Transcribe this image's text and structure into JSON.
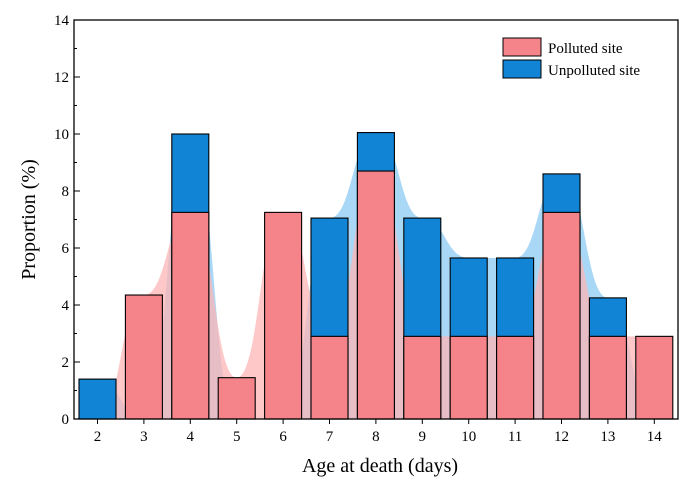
{
  "chart_data": {
    "type": "bar",
    "xlabel": "Age at death (days)",
    "ylabel": "Proportion (%)",
    "ylim": [
      0,
      14
    ],
    "yticks": [
      0,
      2,
      4,
      6,
      8,
      10,
      12,
      14
    ],
    "categories": [
      "2",
      "3",
      "4",
      "5",
      "6",
      "7",
      "8",
      "9",
      "10",
      "11",
      "12",
      "13",
      "14"
    ],
    "series": [
      {
        "name": "Polluted site",
        "color": "#f4838a",
        "values": [
          0,
          4.35,
          7.25,
          1.45,
          7.25,
          2.9,
          8.7,
          2.9,
          2.9,
          2.9,
          7.25,
          2.9,
          2.9
        ]
      },
      {
        "name": "Unpolluted site",
        "color": "#1184d6",
        "values": [
          1.4,
          0,
          10.0,
          0,
          0,
          7.05,
          10.05,
          7.05,
          5.65,
          5.65,
          8.6,
          4.25,
          0
        ]
      }
    ],
    "stacking": "overlay",
    "band_colors": {
      "Polluted site": "#fdb6b6",
      "Unpolluted site": "#8ccbf3"
    },
    "legend_position": "top-right",
    "grid": false
  }
}
